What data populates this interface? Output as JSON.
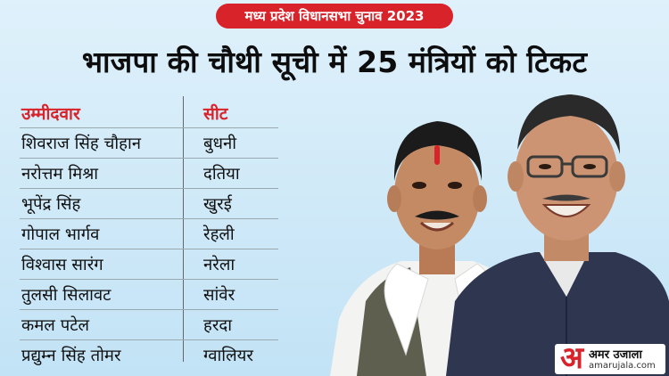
{
  "badge": "मध्य प्रदेश विधानसभा चुनाव 2023",
  "headline": "भाजपा की चौथी सूची में 25 मंत्रियों को टिकट",
  "table": {
    "headers": [
      "उम्मीदवार",
      "सीट"
    ],
    "rows": [
      [
        "शिवराज सिंह चौहान",
        "बुधनी"
      ],
      [
        "नरोत्तम मिश्रा",
        "दतिया"
      ],
      [
        "भूपेंद्र सिंह",
        "खुरई"
      ],
      [
        "गोपाल भार्गव",
        "रेहली"
      ],
      [
        "विश्वास सारंग",
        "नरेला"
      ],
      [
        "तुलसी सिलावट",
        "सांवेर"
      ],
      [
        "कमल पटेल",
        "हरदा"
      ],
      [
        "प्रद्युम्न सिंह तोमर",
        "ग्वालियर"
      ]
    ]
  },
  "logo": {
    "mark": "अ",
    "name": "अमर उजाला",
    "url": "amarujala.com"
  },
  "colors": {
    "accent": "#d8232a",
    "background": "#d6edf9"
  }
}
